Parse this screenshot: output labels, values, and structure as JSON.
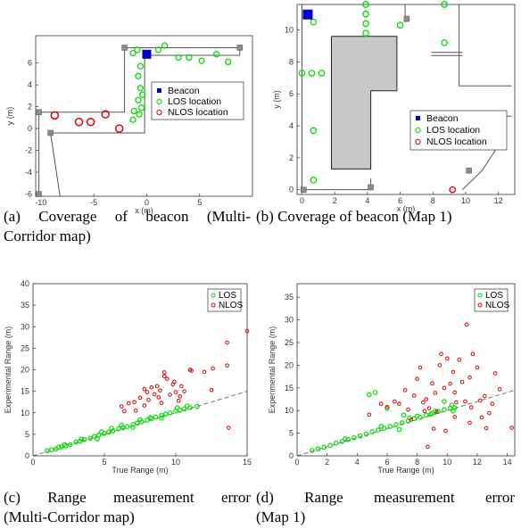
{
  "captions": {
    "a": [
      "(a) Coverage of beacon (Multi-",
      "Corridor map)"
    ],
    "b": [
      "(b) Coverage of beacon (Map 1)"
    ],
    "c": [
      "(c) Range measurement error",
      "(Multi-Corridor map)"
    ],
    "d": [
      "(d) Range measurement error",
      "(Map 1)"
    ]
  },
  "colors": {
    "beacon": "#0000cc",
    "los": "#00dd00",
    "nlos": "#dd0000",
    "anchor": "#8c8c8c",
    "wall": "#555555",
    "obstacle": "#c8c8c8",
    "fit": "#666666"
  },
  "chart_data": [
    {
      "id": "a",
      "type": "scatter",
      "xlabel": "x (m)",
      "ylabel": "y (m)",
      "xlim": [
        -10.5,
        10
      ],
      "ylim": [
        -6.2,
        8.5
      ],
      "xticks": [
        -10,
        -5,
        0,
        5
      ],
      "yticks": [
        -6,
        -4,
        -2,
        0,
        2,
        4,
        6
      ],
      "legend": [
        "Beacon",
        "LOS location",
        "NLOS location"
      ],
      "beacon": [
        [
          0,
          6.8
        ]
      ],
      "anchors": [
        [
          -2.1,
          7.4
        ],
        [
          8.8,
          7.4
        ],
        [
          -10.2,
          1.5
        ],
        [
          -9.1,
          -0.4
        ],
        [
          -10.2,
          -6
        ]
      ],
      "los": [
        [
          -1.3,
          6.9
        ],
        [
          -0.9,
          7.2
        ],
        [
          1.1,
          7.2
        ],
        [
          1.7,
          7.6
        ],
        [
          3.0,
          6.5
        ],
        [
          4.0,
          6.5
        ],
        [
          5.2,
          6.2
        ],
        [
          6.6,
          6.8
        ],
        [
          7.7,
          6.1
        ],
        [
          -0.6,
          5.7
        ],
        [
          -0.8,
          4.8
        ],
        [
          -0.6,
          3.7
        ],
        [
          -0.4,
          3.1
        ],
        [
          -0.8,
          2.6
        ],
        [
          -1.2,
          1.6
        ],
        [
          -0.5,
          1.9
        ],
        [
          -0.7,
          1.3
        ],
        [
          -1.3,
          0.8
        ]
      ],
      "nlos": [
        [
          -8.7,
          1.2
        ],
        [
          -6.4,
          0.6
        ],
        [
          -5.3,
          0.6
        ],
        [
          -3.9,
          1.3
        ],
        [
          -2.6,
          0.0
        ]
      ]
    },
    {
      "id": "b",
      "type": "scatter",
      "xlabel": "x (m)",
      "ylabel": "y (m)",
      "xlim": [
        -0.3,
        13
      ],
      "ylim": [
        -0.3,
        11.6
      ],
      "xticks": [
        0,
        2,
        4,
        6,
        8,
        10,
        12
      ],
      "yticks": [
        0,
        2,
        4,
        6,
        8,
        10
      ],
      "legend": [
        "Beacon",
        "LOS location",
        "NLOS location"
      ],
      "beacon": [
        [
          0.05,
          11
        ]
      ],
      "anchors": [
        [
          6.4,
          10.7
        ],
        [
          4.2,
          0.15
        ],
        [
          10.2,
          1.2
        ],
        [
          0.1,
          0.0
        ]
      ],
      "los": [
        [
          3.9,
          11.6
        ],
        [
          3.9,
          11.0
        ],
        [
          3.9,
          10.4
        ],
        [
          3.9,
          9.8
        ],
        [
          6.0,
          10.3
        ],
        [
          0.7,
          10.5
        ],
        [
          8.7,
          11.6
        ],
        [
          8.7,
          9.2
        ],
        [
          0.0,
          7.3
        ],
        [
          0.6,
          7.3
        ],
        [
          1.2,
          7.3
        ],
        [
          0.7,
          3.7
        ],
        [
          0.7,
          0.6
        ]
      ],
      "nlos": [
        [
          9.2,
          0.0
        ]
      ]
    },
    {
      "id": "c",
      "type": "scatter",
      "xlabel": "True Range (m)",
      "ylabel": "Experimental Range (m)",
      "xlim": [
        0,
        15
      ],
      "ylim": [
        0,
        40
      ],
      "xticks": [
        0,
        5,
        10,
        15
      ],
      "yticks": [
        0,
        5,
        10,
        15,
        20,
        25,
        30,
        35,
        40
      ],
      "legend": [
        "LOS",
        "NLOS"
      ],
      "fit_line": [
        [
          0,
          0
        ],
        [
          15,
          15
        ]
      ],
      "los": [
        [
          1.0,
          1.2
        ],
        [
          1.3,
          1.4
        ],
        [
          1.6,
          1.6
        ],
        [
          2.0,
          2.1
        ],
        [
          2.3,
          2.3
        ],
        [
          2.6,
          2.6
        ],
        [
          3.0,
          3.2
        ],
        [
          3.3,
          3.4
        ],
        [
          3.6,
          3.8
        ],
        [
          4.0,
          4.1
        ],
        [
          4.3,
          4.5
        ],
        [
          4.6,
          4.8
        ],
        [
          5.0,
          5.2
        ],
        [
          5.3,
          5.5
        ],
        [
          5.6,
          5.8
        ],
        [
          6.0,
          6.3
        ],
        [
          6.3,
          6.5
        ],
        [
          6.6,
          6.8
        ],
        [
          7.0,
          7.3
        ],
        [
          7.3,
          7.6
        ],
        [
          7.6,
          7.9
        ],
        [
          8.0,
          8.3
        ],
        [
          8.3,
          8.7
        ],
        [
          8.6,
          9.0
        ],
        [
          9.0,
          9.4
        ],
        [
          9.3,
          9.7
        ],
        [
          9.6,
          10.0
        ],
        [
          10.0,
          10.4
        ],
        [
          10.3,
          10.6
        ],
        [
          10.6,
          10.9
        ],
        [
          11.0,
          11.2
        ],
        [
          1.8,
          2.0
        ],
        [
          2.2,
          2.6
        ],
        [
          3.4,
          3.9
        ],
        [
          4.8,
          5.6
        ],
        [
          5.5,
          6.4
        ],
        [
          6.2,
          7.1
        ],
        [
          7.5,
          8.4
        ],
        [
          8.2,
          8.9
        ],
        [
          9.0,
          8.8
        ],
        [
          10.1,
          11.2
        ],
        [
          10.8,
          11.6
        ],
        [
          11.5,
          11.5
        ],
        [
          4.5,
          3.9
        ],
        [
          7.0,
          6.6
        ]
      ],
      "nlos": [
        [
          6.2,
          11.5
        ],
        [
          6.4,
          10.4
        ],
        [
          6.7,
          12.2
        ],
        [
          7.1,
          12.5
        ],
        [
          7.5,
          13.5
        ],
        [
          7.8,
          15.5
        ],
        [
          8.0,
          14.8
        ],
        [
          8.1,
          13.0
        ],
        [
          8.3,
          15.9
        ],
        [
          8.5,
          14.3
        ],
        [
          8.7,
          16.2
        ],
        [
          8.9,
          15.2
        ],
        [
          9.0,
          12.3
        ],
        [
          9.2,
          18.5
        ],
        [
          9.2,
          19.4
        ],
        [
          9.4,
          17.9
        ],
        [
          9.6,
          14.2
        ],
        [
          9.8,
          16.6
        ],
        [
          9.9,
          17.2
        ],
        [
          10.0,
          14.8
        ],
        [
          10.2,
          12.8
        ],
        [
          10.3,
          13.8
        ],
        [
          10.4,
          16.2
        ],
        [
          10.6,
          15.0
        ],
        [
          7.2,
          10.5
        ],
        [
          7.8,
          11.7
        ],
        [
          8.8,
          13.6
        ],
        [
          11.0,
          20.0
        ],
        [
          11.1,
          19.8
        ],
        [
          12.6,
          20.3
        ],
        [
          12.0,
          19.5
        ],
        [
          12.5,
          15.3
        ],
        [
          13.6,
          26.3
        ],
        [
          13.6,
          21.0
        ],
        [
          13.7,
          6.5
        ],
        [
          15.0,
          29.0
        ]
      ]
    },
    {
      "id": "d",
      "type": "scatter",
      "xlabel": "True Range (m)",
      "ylabel": "Experimental Range (m)",
      "xlim": [
        0,
        14.5
      ],
      "ylim": [
        0,
        38
      ],
      "xticks": [
        0,
        2,
        4,
        6,
        8,
        10,
        12,
        14
      ],
      "yticks": [
        0,
        5,
        10,
        15,
        20,
        25,
        30,
        35
      ],
      "legend": [
        "LOS",
        "NLOS"
      ],
      "fit_line": [
        [
          0,
          0
        ],
        [
          14.5,
          14.5
        ]
      ],
      "los": [
        [
          1.0,
          1.2
        ],
        [
          1.4,
          1.5
        ],
        [
          1.8,
          1.9
        ],
        [
          2.2,
          2.3
        ],
        [
          2.6,
          2.8
        ],
        [
          3.0,
          3.2
        ],
        [
          3.4,
          3.6
        ],
        [
          3.8,
          4.0
        ],
        [
          4.2,
          4.4
        ],
        [
          4.6,
          4.8
        ],
        [
          5.0,
          5.3
        ],
        [
          5.4,
          5.7
        ],
        [
          5.8,
          6.1
        ],
        [
          6.2,
          6.5
        ],
        [
          6.6,
          6.9
        ],
        [
          7.0,
          7.3
        ],
        [
          7.4,
          7.7
        ],
        [
          7.8,
          8.2
        ],
        [
          8.2,
          8.5
        ],
        [
          8.6,
          9.0
        ],
        [
          9.0,
          9.4
        ],
        [
          9.4,
          9.8
        ],
        [
          9.8,
          10.2
        ],
        [
          10.2,
          10.5
        ],
        [
          10.5,
          10.6
        ],
        [
          4.8,
          13.5
        ],
        [
          5.2,
          14.0
        ],
        [
          6.0,
          10.5
        ],
        [
          7.1,
          9.0
        ],
        [
          8.0,
          8.8
        ],
        [
          9.2,
          9.9
        ],
        [
          9.8,
          12.0
        ],
        [
          10.3,
          11.2
        ],
        [
          3.2,
          3.8
        ],
        [
          5.6,
          6.5
        ],
        [
          7.5,
          8.4
        ],
        [
          6.8,
          5.8
        ],
        [
          8.9,
          9.2
        ],
        [
          10.4,
          9.9
        ]
      ],
      "nlos": [
        [
          4.8,
          9.1
        ],
        [
          5.6,
          11.5
        ],
        [
          6.0,
          10.8
        ],
        [
          6.5,
          12.0
        ],
        [
          6.8,
          11.5
        ],
        [
          7.2,
          14.5
        ],
        [
          7.4,
          10.2
        ],
        [
          7.6,
          8.0
        ],
        [
          7.8,
          13.3
        ],
        [
          8.0,
          17.0
        ],
        [
          8.2,
          19.5
        ],
        [
          8.4,
          11.8
        ],
        [
          8.5,
          9.9
        ],
        [
          8.6,
          12.5
        ],
        [
          8.8,
          10.5
        ],
        [
          9.0,
          16.0
        ],
        [
          9.1,
          6.0
        ],
        [
          9.2,
          13.9
        ],
        [
          9.3,
          9.7
        ],
        [
          9.5,
          20.0
        ],
        [
          9.6,
          22.5
        ],
        [
          9.8,
          15.0
        ],
        [
          10.0,
          21.5
        ],
        [
          10.2,
          15.9
        ],
        [
          10.4,
          18.5
        ],
        [
          10.5,
          14.0
        ],
        [
          10.6,
          11.8
        ],
        [
          10.8,
          21.2
        ],
        [
          11.0,
          16.3
        ],
        [
          11.2,
          12.0
        ],
        [
          11.3,
          29.0
        ],
        [
          11.5,
          17.3
        ],
        [
          11.6,
          10.7
        ],
        [
          11.7,
          22.5
        ],
        [
          12.0,
          19.5
        ],
        [
          12.2,
          12.2
        ],
        [
          12.3,
          8.5
        ],
        [
          12.5,
          13.2
        ],
        [
          12.8,
          9.4
        ],
        [
          13.0,
          11.5
        ],
        [
          13.2,
          18.2
        ],
        [
          13.5,
          14.7
        ],
        [
          14.3,
          6.2
        ],
        [
          8.7,
          2.0
        ],
        [
          9.9,
          5.5
        ],
        [
          10.5,
          8.6
        ],
        [
          11.5,
          7.3
        ],
        [
          12.6,
          6.1
        ]
      ]
    }
  ]
}
